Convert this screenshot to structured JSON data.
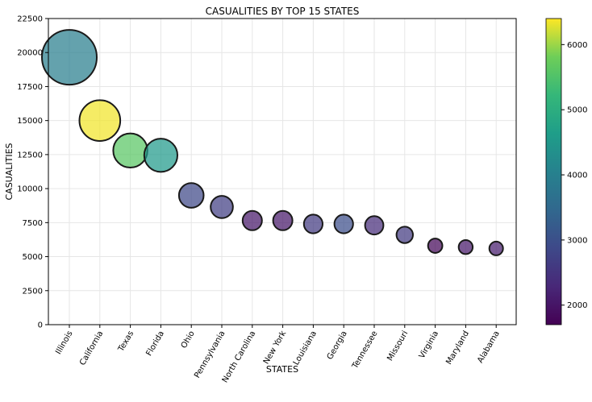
{
  "chart_data": {
    "type": "scatter",
    "title": "CASUALITIES BY TOP 15 STATES",
    "xlabel": "STATES",
    "ylabel": "CASUALITIES",
    "ylim": [
      0,
      22500
    ],
    "yticks": [
      "0",
      "2500",
      "5000",
      "7500",
      "10000",
      "12500",
      "15000",
      "17500",
      "20000",
      "22500"
    ],
    "grid": true,
    "categories": [
      "Illinois",
      "California",
      "Texas",
      "Florida",
      "Ohio",
      "Pennsylvania",
      "North Carolina",
      "New York",
      "Louisiana",
      "Georgia",
      "Tennessee",
      "Missouri",
      "Virginia",
      "Maryland",
      "Alabama"
    ],
    "values": [
      19650,
      15000,
      12800,
      12450,
      9500,
      8650,
      7650,
      7650,
      7400,
      7400,
      7300,
      6600,
      5800,
      5700,
      5600
    ],
    "color_values": [
      3950,
      6350,
      5600,
      4550,
      2850,
      2700,
      2050,
      2050,
      2600,
      2950,
      2350,
      2600,
      1800,
      2050,
      2100
    ],
    "colorbar": {
      "range": [
        1700,
        6400
      ],
      "ticks": [
        "2000",
        "3000",
        "4000",
        "5000",
        "6000"
      ],
      "colormap": "viridis"
    }
  }
}
